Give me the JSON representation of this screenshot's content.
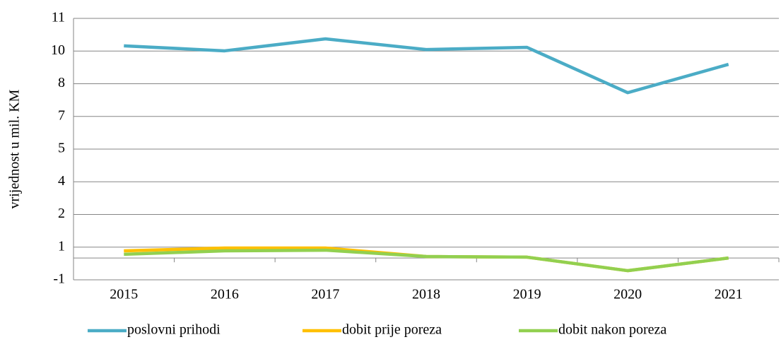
{
  "chart_data": {
    "type": "line",
    "y_label": "vrijednost u mil. KM",
    "categories": [
      "2015",
      "2016",
      "2017",
      "2018",
      "2019",
      "2020",
      "2021"
    ],
    "series": [
      {
        "name": "poslovni prihodi",
        "color": "#4bacc6",
        "values": [
          9.74,
          9.51,
          10.06,
          9.57,
          9.67,
          7.59,
          8.89
        ]
      },
      {
        "name": "dobit prije poreza",
        "color": "#ffc000",
        "values": [
          0.33,
          0.46,
          0.46,
          0.07,
          0.04,
          -0.58,
          0
        ]
      },
      {
        "name": "dobit nakon poreza",
        "color": "#92d050",
        "values": [
          0.17,
          0.33,
          0.36,
          0.07,
          0.04,
          -0.58,
          0
        ]
      }
    ],
    "ylim": [
      -1,
      11
    ],
    "yticks": [
      -1,
      {
        "value": 0.5,
        "label": "1"
      },
      2,
      {
        "value": 3.5,
        "label": "4"
      },
      5,
      {
        "value": 6.5,
        "label": "7"
      },
      8,
      {
        "value": 9.5,
        "label": "10"
      },
      11
    ],
    "grid": true,
    "legend": "bottom"
  }
}
